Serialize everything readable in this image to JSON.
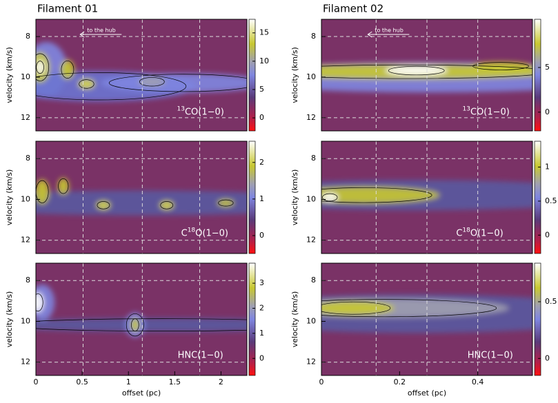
{
  "chart_data": [
    {
      "type": "image",
      "title": "Filament 01",
      "ylabel": "velocity (km/s)",
      "label": {
        "sup": "13",
        "text": "CO(1−0)"
      },
      "annotation": "to the hub",
      "xlim": [
        0,
        2.28
      ],
      "ylim": [
        7.15,
        12.65
      ],
      "y_inverted": true,
      "yticks": [
        8,
        10,
        12
      ],
      "vlines": [
        0.51,
        1.15,
        1.77
      ],
      "hlines": [
        8,
        12
      ],
      "clim": [
        -2.3,
        17.4
      ],
      "cticks": [
        0,
        5,
        10,
        15
      ]
    },
    {
      "type": "image",
      "title": "Filament 02",
      "ylabel": "velocity (km/s)",
      "label": {
        "sup": "13",
        "text": "CO(1−0)"
      },
      "annotation": "to the hub",
      "xlim": [
        0,
        0.54
      ],
      "ylim": [
        7.15,
        12.65
      ],
      "y_inverted": true,
      "yticks": [
        8,
        10,
        12
      ],
      "vlines": [
        0.14,
        0.27,
        0.4
      ],
      "hlines": [
        8,
        12
      ],
      "clim": [
        -2.1,
        10.4
      ],
      "cticks": [
        0,
        5
      ]
    },
    {
      "type": "image",
      "ylabel": "velocity (km/s)",
      "label": {
        "sup": "18",
        "text": "O(1−0)",
        "pre": "C"
      },
      "xlim": [
        0,
        2.28
      ],
      "ylim": [
        7.15,
        12.65
      ],
      "y_inverted": true,
      "yticks": [
        8,
        10,
        12
      ],
      "vlines": [
        0.51,
        1.15,
        1.77
      ],
      "hlines": [
        8,
        12
      ],
      "clim": [
        -0.49,
        2.58
      ],
      "cticks": [
        0,
        1,
        2
      ]
    },
    {
      "type": "image",
      "ylabel": "velocity (km/s)",
      "label": {
        "sup": "18",
        "text": "O(1−0)",
        "pre": "C"
      },
      "xlim": [
        0,
        0.54
      ],
      "ylim": [
        7.15,
        12.65
      ],
      "y_inverted": true,
      "yticks": [
        8,
        10,
        12
      ],
      "vlines": [
        0.14,
        0.27,
        0.4
      ],
      "hlines": [
        8,
        12
      ],
      "clim": [
        -0.27,
        1.38
      ],
      "cticks": [
        0,
        0.5,
        1
      ]
    },
    {
      "type": "image",
      "ylabel": "velocity (km/s)",
      "xlabel": "offset (pc)",
      "label": {
        "text": "HNC(1−0)"
      },
      "xlim": [
        0,
        2.28
      ],
      "ylim": [
        7.15,
        12.65
      ],
      "y_inverted": true,
      "yticks": [
        8,
        10,
        12
      ],
      "xticks": [
        0,
        0.5,
        1,
        1.5,
        2
      ],
      "vlines": [
        0.51,
        1.15,
        1.77
      ],
      "hlines": [
        8,
        12
      ],
      "clim": [
        -0.68,
        3.8
      ],
      "cticks": [
        0,
        1,
        2,
        3
      ]
    },
    {
      "type": "image",
      "ylabel": "velocity (km/s)",
      "xlabel": "offset (pc)",
      "label": {
        "text": "HNC(1−0)"
      },
      "xlim": [
        0,
        0.54
      ],
      "ylim": [
        7.15,
        12.65
      ],
      "y_inverted": true,
      "yticks": [
        8,
        10,
        12
      ],
      "xticks": [
        0,
        0.2,
        0.4
      ],
      "vlines": [
        0.14,
        0.27,
        0.4
      ],
      "hlines": [
        8,
        12
      ],
      "clim": [
        -0.15,
        0.84
      ],
      "cticks": [
        0,
        0.5
      ]
    }
  ]
}
